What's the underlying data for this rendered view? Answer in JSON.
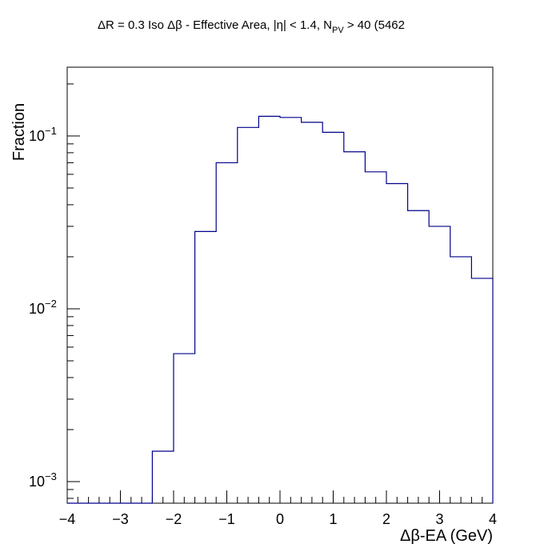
{
  "chart_data": {
    "type": "histogram",
    "title": "ΔR = 0.3 Iso Δβ - Effective Area, |η| < 1.4, N",
    "title_sub": "PV",
    "title_tail": " > 40 (5462",
    "xlabel": "Δβ-EA (GeV)",
    "ylabel": "Fraction",
    "xlim": [
      -4,
      4
    ],
    "ylim": [
      0.00075,
      0.25
    ],
    "yscale": "log",
    "grid": false,
    "x_ticks": [
      "−4",
      "−3",
      "−2",
      "−1",
      "0",
      "1",
      "2",
      "3",
      "4"
    ],
    "y_ticks": [
      {
        "value": 0.001,
        "base": "10",
        "exp": "−3"
      },
      {
        "value": 0.01,
        "base": "10",
        "exp": "−2"
      },
      {
        "value": 0.1,
        "base": "10",
        "exp": "−1"
      }
    ],
    "line_color": "#00008b",
    "bin_edges": [
      -4.0,
      -3.6,
      -3.2,
      -2.8,
      -2.4,
      -2.0,
      -1.6,
      -1.2,
      -0.8,
      -0.4,
      0.0,
      0.4,
      0.8,
      1.2,
      1.6,
      2.0,
      2.4,
      2.8,
      3.2,
      3.6,
      4.0
    ],
    "values": [
      0,
      0,
      0,
      0,
      0.0015,
      0.0055,
      0.028,
      0.07,
      0.112,
      0.13,
      0.128,
      0.12,
      0.105,
      0.081,
      0.062,
      0.053,
      0.037,
      0.03,
      0.02,
      0.015
    ]
  }
}
